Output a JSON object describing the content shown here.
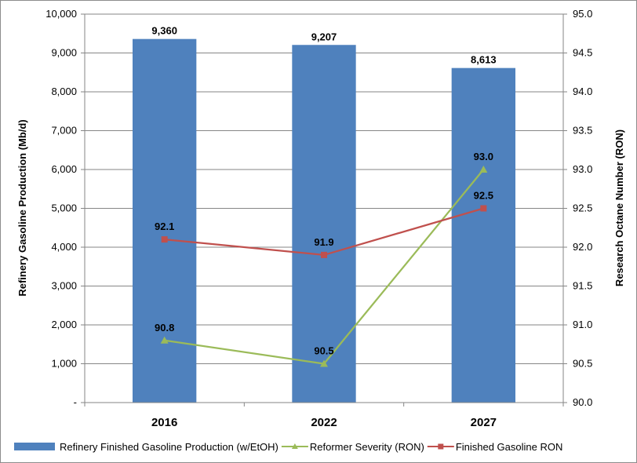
{
  "chart_data": {
    "type": "bar",
    "categories": [
      "2016",
      "2022",
      "2027"
    ],
    "y_left": {
      "label": "Refinery Gasoline Production (Mb/d)",
      "range": [
        0,
        10000
      ],
      "ticks": [
        "-",
        "1,000",
        "2,000",
        "3,000",
        "4,000",
        "5,000",
        "6,000",
        "7,000",
        "8,000",
        "9,000",
        "10,000"
      ]
    },
    "y_right": {
      "label": "Research Octane Number (RON)",
      "range": [
        90.0,
        95.0
      ],
      "ticks": [
        "90.0",
        "90.5",
        "91.0",
        "91.5",
        "92.0",
        "92.5",
        "93.0",
        "93.5",
        "94.0",
        "94.5",
        "95.0"
      ]
    },
    "grid": "horizontal",
    "legend_position": "bottom",
    "series": [
      {
        "name": "Refinery Finished Gasoline Production (w/EtOH)",
        "type": "bar",
        "axis": "left",
        "color": "#4f81bd",
        "values": [
          9360,
          9207,
          8613
        ],
        "labels": [
          "9,360",
          "9,207",
          "8,613"
        ]
      },
      {
        "name": "Reformer Severity (RON)",
        "type": "line",
        "axis": "right",
        "color": "#9bbb59",
        "marker": "triangle",
        "values": [
          90.8,
          90.5,
          93.0
        ],
        "labels": [
          "90.8",
          "90.5",
          "93.0"
        ]
      },
      {
        "name": "Finished Gasoline RON",
        "type": "line",
        "axis": "right",
        "color": "#c0504d",
        "marker": "square",
        "values": [
          92.1,
          91.9,
          92.5
        ],
        "labels": [
          "92.1",
          "91.9",
          "92.5"
        ]
      }
    ]
  }
}
